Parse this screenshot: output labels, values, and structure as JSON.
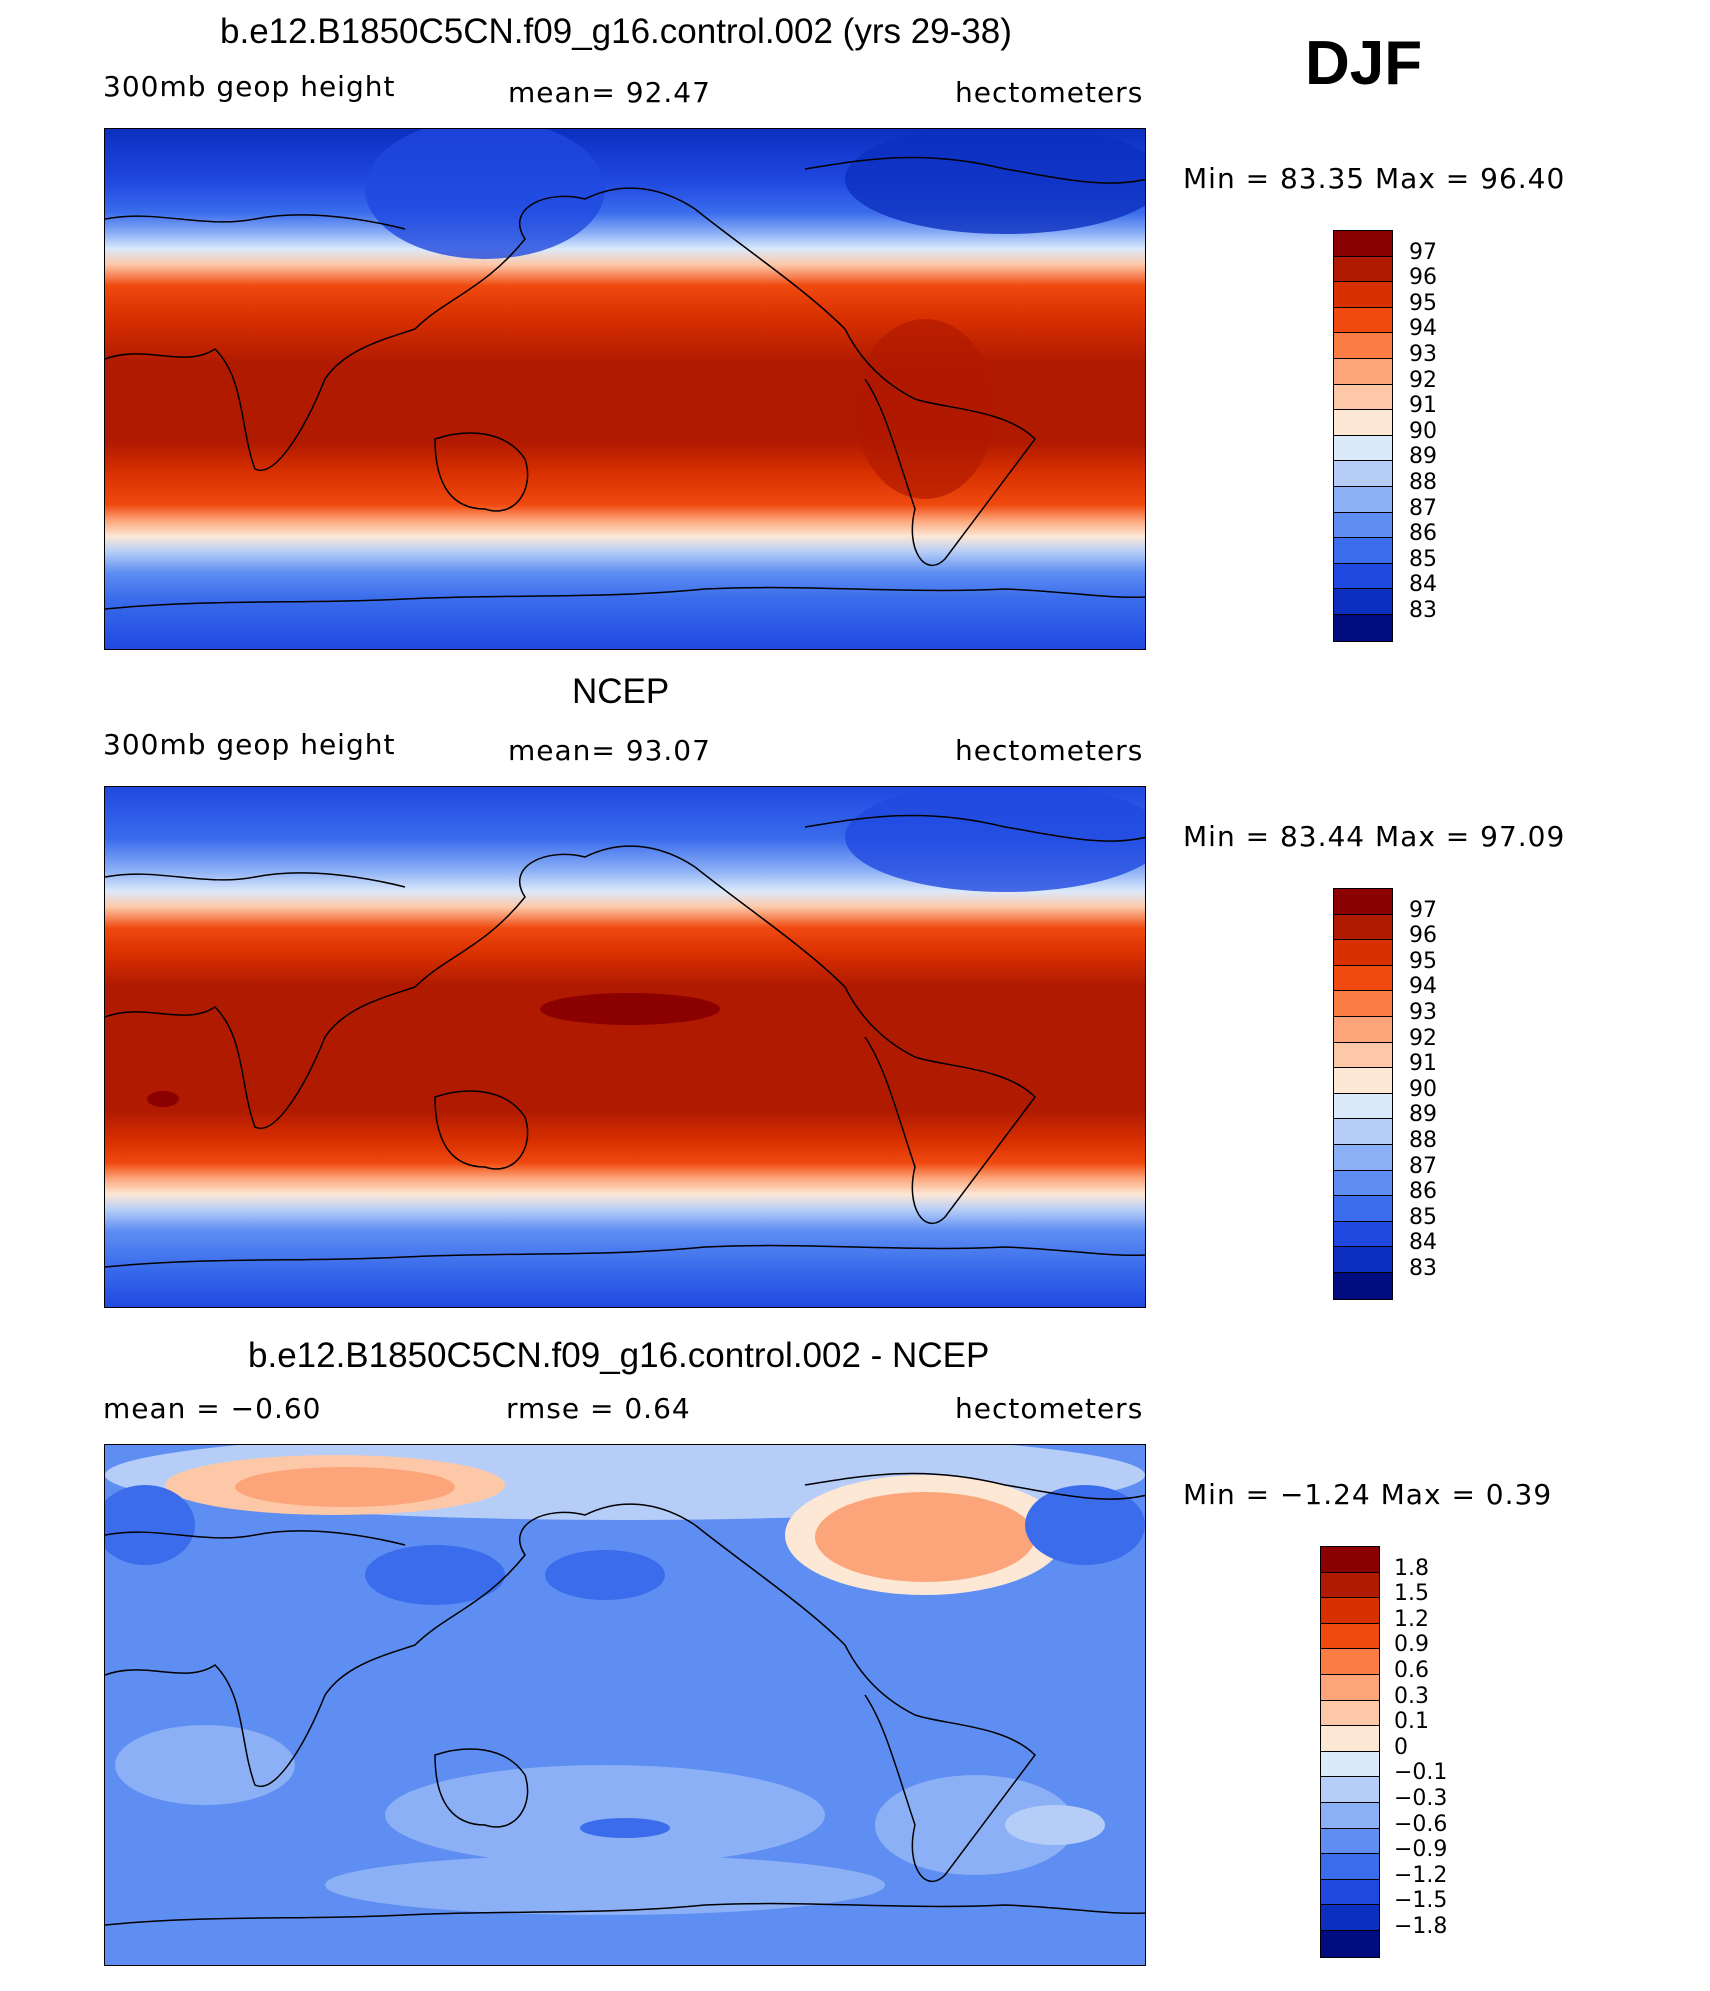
{
  "season": "DJF",
  "panels": [
    {
      "title": "b.e12.B1850C5CN.f09_g16.control.002 (yrs 29-38)",
      "left_label": "300mb  geop  height",
      "center_label": "mean=   92.47",
      "right_label": "hectometers",
      "minmax": "Min  =    83.35  Max  =    96.40",
      "colorbar_labels": [
        "97",
        "96",
        "95",
        "94",
        "93",
        "92",
        "91",
        "90",
        "89",
        "88",
        "87",
        "86",
        "85",
        "84",
        "83"
      ],
      "colorbar_colors": [
        "#8b0000",
        "#b01a00",
        "#d93000",
        "#f04a10",
        "#fb7c44",
        "#fca57a",
        "#fdc8a8",
        "#fde8d6",
        "#dbe9fa",
        "#b6cdf8",
        "#8cb0f6",
        "#5e8ef2",
        "#3a6cec",
        "#1f48e0",
        "#0c2fbf",
        "#000c80"
      ]
    },
    {
      "title": "NCEP",
      "left_label": "300mb  geop  height",
      "center_label": "mean=   93.07",
      "right_label": "hectometers",
      "minmax": "Min  =    83.44  Max  =    97.09",
      "colorbar_labels": [
        "97",
        "96",
        "95",
        "94",
        "93",
        "92",
        "91",
        "90",
        "89",
        "88",
        "87",
        "86",
        "85",
        "84",
        "83"
      ],
      "colorbar_colors": [
        "#8b0000",
        "#b01a00",
        "#d93000",
        "#f04a10",
        "#fb7c44",
        "#fca57a",
        "#fdc8a8",
        "#fde8d6",
        "#dbe9fa",
        "#b6cdf8",
        "#8cb0f6",
        "#5e8ef2",
        "#3a6cec",
        "#1f48e0",
        "#0c2fbf",
        "#000c80"
      ]
    },
    {
      "title": "b.e12.B1850C5CN.f09_g16.control.002 - NCEP",
      "left_label": "mean  =    −0.60",
      "center_label": "rmse  =     0.64",
      "right_label": "hectometers",
      "minmax": "Min  =   −1.24  Max  =     0.39",
      "colorbar_labels": [
        "1.8",
        "1.5",
        "1.2",
        "0.9",
        "0.6",
        "0.3",
        "0.1",
        "0",
        "−0.1",
        "−0.3",
        "−0.6",
        "−0.9",
        "−1.2",
        "−1.5",
        "−1.8"
      ],
      "colorbar_colors": [
        "#8b0000",
        "#b01a00",
        "#d93000",
        "#f04a10",
        "#fb7c44",
        "#fca57a",
        "#fdc8a8",
        "#fde8d6",
        "#dbe9fa",
        "#b6cdf8",
        "#8cb0f6",
        "#5e8ef2",
        "#3a6cec",
        "#1f48e0",
        "#0c2fbf",
        "#000c80"
      ]
    }
  ]
}
